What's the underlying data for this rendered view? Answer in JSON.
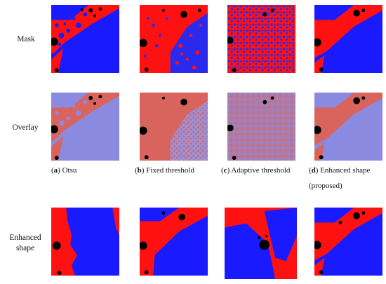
{
  "row_labels": {
    "mask": "Mask",
    "overlay": "Overlay",
    "enhanced_line1": "Enhanced",
    "enhanced_line2": "shape"
  },
  "captions": [
    {
      "letter": "a",
      "text": ") Otsu",
      "text2": ""
    },
    {
      "letter": "b",
      "text": ") Fixed threshold",
      "text2": ""
    },
    {
      "letter": "c",
      "text": ") Adaptive threshold",
      "text2": ""
    },
    {
      "letter": "d",
      "text": ") Enhanced shape",
      "text2": "(proposed)"
    }
  ],
  "colors": {
    "red": "#ff1111",
    "blue": "#1a1aff",
    "black": "#000000",
    "overlay_red": "#d9645d",
    "overlay_blue": "#8a8ae0"
  }
}
